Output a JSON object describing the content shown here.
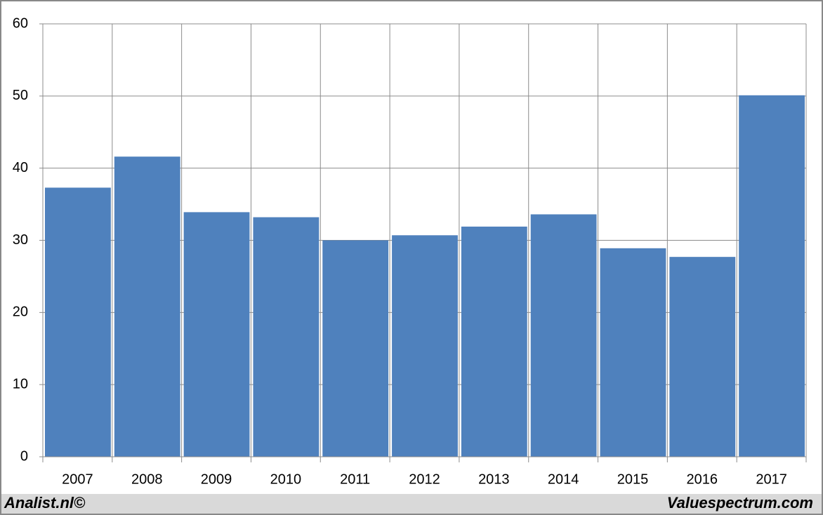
{
  "chart_data": {
    "type": "bar",
    "categories": [
      "2007",
      "2008",
      "2009",
      "2010",
      "2011",
      "2012",
      "2013",
      "2014",
      "2015",
      "2016",
      "2017"
    ],
    "values": [
      37.3,
      41.6,
      33.9,
      33.2,
      30.0,
      30.7,
      31.9,
      33.6,
      28.9,
      27.7,
      50.1
    ],
    "color": "#4f81bd",
    "ylim": [
      0,
      60
    ],
    "yticks": [
      0,
      10,
      20,
      30,
      40,
      50,
      60
    ],
    "grid": true
  },
  "footer": {
    "left": "Analist.nl©",
    "right": "Valuespectrum.com"
  }
}
